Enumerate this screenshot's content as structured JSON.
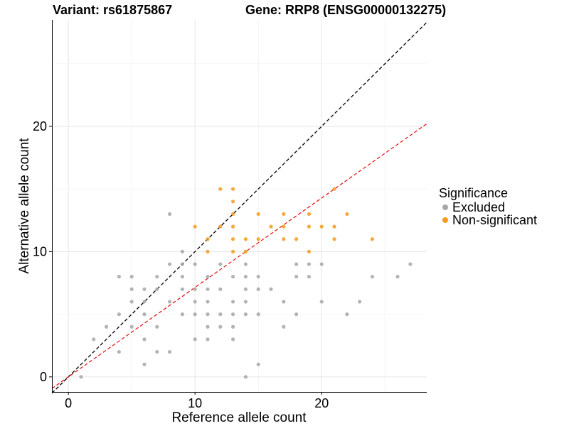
{
  "header": {
    "variant_text": "Variant: rs61875867",
    "gene_text": "Gene: RRP8 (ENSG00000132275)"
  },
  "chart_data": {
    "type": "scatter",
    "xlabel": "Reference allele count",
    "ylabel": "Alternative allele count",
    "xlim": [
      -1.3,
      28.3
    ],
    "ylim": [
      -1.2,
      28.5
    ],
    "x_ticks": [
      0,
      10,
      20
    ],
    "y_ticks": [
      0,
      10,
      20
    ],
    "grid": true,
    "legend": {
      "title": "Significance",
      "position": "right",
      "entries": [
        {
          "label": "Excluded",
          "color": "#A6A6A6"
        },
        {
          "label": "Non-significant",
          "color": "#F59A1A"
        }
      ]
    },
    "reference_lines": [
      {
        "slope": 1.0,
        "intercept": 0,
        "color": "#000000",
        "style": "dashed"
      },
      {
        "slope": 0.714,
        "intercept": 0,
        "color": "#E41A1C",
        "style": "dashed"
      }
    ],
    "series": [
      {
        "name": "Excluded",
        "color": "#A6A6A6",
        "points": [
          [
            1,
            0
          ],
          [
            2,
            3
          ],
          [
            3,
            4
          ],
          [
            4,
            2
          ],
          [
            4,
            5
          ],
          [
            4,
            8
          ],
          [
            5,
            4
          ],
          [
            5,
            6
          ],
          [
            5,
            8
          ],
          [
            5,
            7
          ],
          [
            6,
            1
          ],
          [
            6,
            3
          ],
          [
            6,
            5
          ],
          [
            6,
            6
          ],
          [
            6,
            7
          ],
          [
            7,
            2
          ],
          [
            7,
            4
          ],
          [
            7,
            7
          ],
          [
            7,
            8
          ],
          [
            8,
            2
          ],
          [
            8,
            6
          ],
          [
            8,
            9
          ],
          [
            8,
            13
          ],
          [
            9,
            5
          ],
          [
            9,
            7
          ],
          [
            9,
            8
          ],
          [
            9,
            9
          ],
          [
            9,
            10
          ],
          [
            10,
            3
          ],
          [
            10,
            5
          ],
          [
            10,
            6
          ],
          [
            10,
            7
          ],
          [
            10,
            9
          ],
          [
            11,
            3
          ],
          [
            11,
            4
          ],
          [
            11,
            5
          ],
          [
            11,
            6
          ],
          [
            11,
            7
          ],
          [
            11,
            8
          ],
          [
            12,
            4
          ],
          [
            12,
            5
          ],
          [
            12,
            7
          ],
          [
            12,
            9
          ],
          [
            13,
            3
          ],
          [
            13,
            4
          ],
          [
            13,
            5
          ],
          [
            13,
            6
          ],
          [
            13,
            8
          ],
          [
            14,
            0
          ],
          [
            14,
            5
          ],
          [
            14,
            6
          ],
          [
            14,
            7
          ],
          [
            14,
            8
          ],
          [
            14,
            9
          ],
          [
            15,
            1
          ],
          [
            15,
            5
          ],
          [
            15,
            7
          ],
          [
            15,
            8
          ],
          [
            16,
            7
          ],
          [
            17,
            4
          ],
          [
            17,
            6
          ],
          [
            18,
            5
          ],
          [
            18,
            8
          ],
          [
            18,
            9
          ],
          [
            19,
            8
          ],
          [
            19,
            9
          ],
          [
            20,
            6
          ],
          [
            20,
            9
          ],
          [
            22,
            5
          ],
          [
            23,
            6
          ],
          [
            24,
            8
          ],
          [
            26,
            8
          ],
          [
            27,
            9
          ]
        ]
      },
      {
        "name": "Non-significant",
        "color": "#F59A1A",
        "points": [
          [
            10,
            12
          ],
          [
            11,
            10
          ],
          [
            11,
            11
          ],
          [
            12,
            15
          ],
          [
            12,
            12
          ],
          [
            13,
            15
          ],
          [
            13,
            14
          ],
          [
            13,
            13
          ],
          [
            13,
            12
          ],
          [
            13,
            11
          ],
          [
            13,
            10
          ],
          [
            14,
            11
          ],
          [
            14,
            10
          ],
          [
            15,
            13
          ],
          [
            15,
            11
          ],
          [
            16,
            12
          ],
          [
            17,
            13
          ],
          [
            17,
            12
          ],
          [
            17,
            11
          ],
          [
            18,
            11
          ],
          [
            19,
            13
          ],
          [
            19,
            12
          ],
          [
            19,
            10
          ],
          [
            20,
            12
          ],
          [
            21,
            15
          ],
          [
            21,
            12
          ],
          [
            21,
            11
          ],
          [
            22,
            13
          ],
          [
            24,
            11
          ]
        ]
      }
    ]
  }
}
